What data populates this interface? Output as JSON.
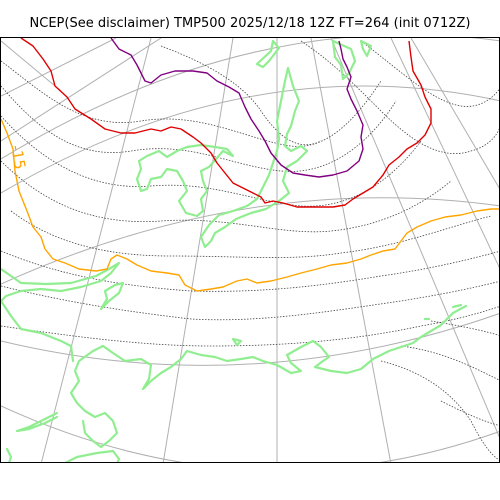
{
  "title": "NCEP(See disclaimer) TMP500 2025/12/18 12Z FT=264 (init 0712Z)",
  "contour_labels": [
    {
      "text": "-15",
      "color": "#ffa500"
    }
  ],
  "colors": {
    "coastline": "#90ee90",
    "graticule": "#b0b0b0",
    "height_contours": "#444444",
    "isotherm_orange": "#ffa500",
    "isotherm_red": "#e00000",
    "isotherm_purple": "#800080"
  }
}
